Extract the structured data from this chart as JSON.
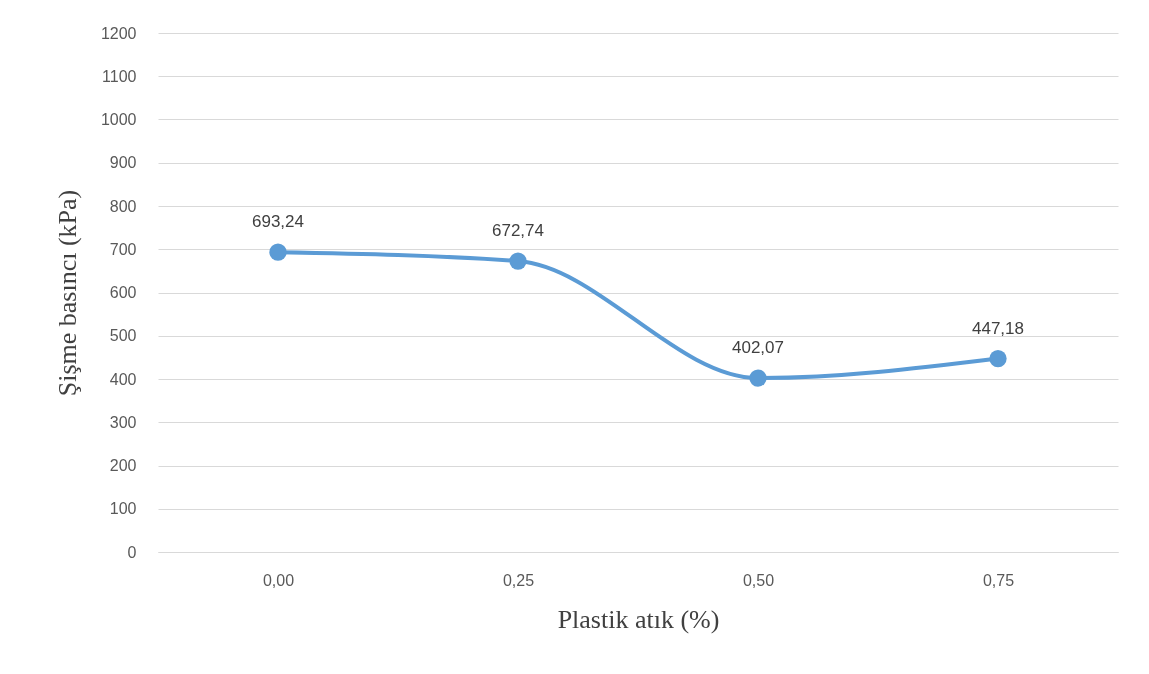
{
  "chart_data": {
    "type": "line",
    "xlabel": "Plastik atık (%)",
    "ylabel": "Şişme basıncı (kPa)",
    "categories": [
      "0,00",
      "0,25",
      "0,50",
      "0,75"
    ],
    "series": [
      {
        "color": "#5b9bd5",
        "values": [
          693.24,
          672.74,
          402.07,
          447.18
        ],
        "value_labels": [
          "693,24",
          "672,74",
          "402,07",
          "447,18"
        ]
      }
    ],
    "ylim": [
      0,
      1200
    ],
    "yticks": [
      0,
      100,
      200,
      300,
      400,
      500,
      600,
      700,
      800,
      900,
      1000,
      1100,
      1200
    ],
    "grid": "y",
    "marker": "circle",
    "line_style": "solid"
  }
}
